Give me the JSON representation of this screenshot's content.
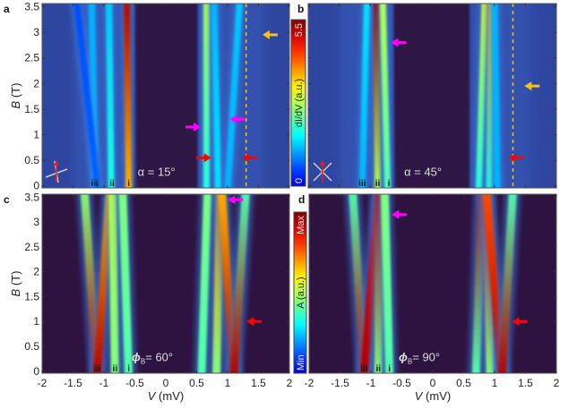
{
  "chart_data": [
    {
      "panel": "a",
      "type": "heatmap",
      "annotation": "α = 15°",
      "xlim": [
        -2,
        2
      ],
      "ylim": [
        0,
        3.5
      ],
      "ylabel": "B (T)",
      "background": "measured",
      "gap": [
        -0.5,
        0.52
      ],
      "dashed_line_V": 1.3,
      "branch_labels": [
        {
          "text": "iii",
          "V": -1.15
        },
        {
          "text": "ii",
          "V": -0.87
        },
        {
          "text": "i",
          "V": -0.6
        }
      ],
      "branches": [
        {
          "V0": -1.14,
          "V1": -1.2,
          "I0": 0.3,
          "I1": 0.3
        },
        {
          "V0": -1.1,
          "V1": -1.45,
          "I0": 0.22,
          "I1": 0.2
        },
        {
          "V0": -0.88,
          "V1": -0.92,
          "I0": 0.4,
          "I1": 0.32
        },
        {
          "V0": -0.6,
          "V1": -0.63,
          "I0": 0.7,
          "I1": 0.95
        },
        {
          "V0": 0.66,
          "V1": 0.66,
          "I0": 0.4,
          "I1": 0.55
        },
        {
          "V0": 0.85,
          "V1": 0.78,
          "I0": 0.35,
          "I1": 0.3
        },
        {
          "V0": 1.0,
          "V1": 1.2,
          "I0": 0.3,
          "I1": 0.32
        }
      ],
      "arrows": [
        {
          "color": "#f0c419",
          "dir": "left",
          "V": 1.68,
          "B": 2.95
        },
        {
          "color": "#ff00ff",
          "dir": "right",
          "V": 0.45,
          "B": 1.15
        },
        {
          "color": "#ff00ff",
          "dir": "left",
          "V": 1.15,
          "B": 1.3
        },
        {
          "color": "#ff0000",
          "dir": "right",
          "V": 0.62,
          "B": 0.55
        },
        {
          "color": "#ff0000",
          "dir": "left",
          "V": 1.35,
          "B": 0.55
        }
      ]
    },
    {
      "panel": "b",
      "type": "heatmap",
      "annotation": "α = 45°",
      "xlim": [
        -2,
        2
      ],
      "ylim": [
        0,
        3.5
      ],
      "background": "measured",
      "gap": [
        -0.62,
        0.6
      ],
      "dashed_line_V": 1.3,
      "branch_labels": [
        {
          "text": "iii",
          "V": -1.13
        },
        {
          "text": "ii",
          "V": -0.88
        },
        {
          "text": "i",
          "V": -0.7
        }
      ],
      "branches": [
        {
          "V0": -1.13,
          "V1": -1.05,
          "I0": 0.3,
          "I1": 0.35
        },
        {
          "V0": -0.88,
          "V1": -0.9,
          "I0": 0.55,
          "I1": 0.98
        },
        {
          "V0": -0.72,
          "V1": -0.8,
          "I0": 0.45,
          "I1": 0.55
        },
        {
          "V0": 0.75,
          "V1": 0.85,
          "I0": 0.4,
          "I1": 0.6
        },
        {
          "V0": 0.92,
          "V1": 0.95,
          "I0": 0.4,
          "I1": 0.7
        },
        {
          "V0": 1.05,
          "V1": 1.0,
          "I0": 0.3,
          "I1": 0.3
        }
      ],
      "arrows": [
        {
          "color": "#ff00ff",
          "dir": "left",
          "V": -0.55,
          "B": 2.8
        },
        {
          "color": "#f0c419",
          "dir": "left",
          "V": 1.6,
          "B": 1.95
        },
        {
          "color": "#ff0000",
          "dir": "left",
          "V": 1.35,
          "B": 0.55
        }
      ]
    },
    {
      "panel": "c",
      "type": "heatmap",
      "annotation_symbol": "ϕ",
      "annotation_sub": "B",
      "annotation_value": "= 60°",
      "xlim": [
        -2,
        2
      ],
      "ylim": [
        0,
        3.5
      ],
      "xlabel": "V (mV)",
      "ylabel": "B (T)",
      "background": "calculated",
      "branch_labels": [
        {
          "text": "iii",
          "V": -1.11
        },
        {
          "text": "ii",
          "V": -0.82
        },
        {
          "text": "i",
          "V": -0.6
        }
      ],
      "branches": [
        {
          "V0": -1.11,
          "V1": -1.32,
          "I0": 0.95,
          "I1": 0.5
        },
        {
          "V0": -1.11,
          "V1": -0.9,
          "I0": 0.95,
          "I1": 0.7
        },
        {
          "V0": -0.82,
          "V1": -0.86,
          "I0": 0.5,
          "I1": 0.55
        },
        {
          "V0": -0.6,
          "V1": -0.7,
          "I0": 0.45,
          "I1": 0.5
        },
        {
          "V0": 0.58,
          "V1": 0.68,
          "I0": 0.45,
          "I1": 0.5
        },
        {
          "V0": 0.82,
          "V1": 0.88,
          "I0": 0.5,
          "I1": 0.75
        },
        {
          "V0": 1.1,
          "V1": 0.9,
          "I0": 0.95,
          "I1": 0.7
        },
        {
          "V0": 1.1,
          "V1": 1.3,
          "I0": 0.95,
          "I1": 0.45
        }
      ],
      "arrows": [
        {
          "color": "#ff00ff",
          "dir": "left",
          "V": 1.12,
          "B": 3.45
        },
        {
          "color": "#ff0000",
          "dir": "left",
          "V": 1.42,
          "B": 1.0
        }
      ]
    },
    {
      "panel": "d",
      "type": "heatmap",
      "annotation_symbol": "ϕ",
      "annotation_sub": "B",
      "annotation_value": "= 90°",
      "xlim": [
        -2,
        2
      ],
      "ylim": [
        0,
        3.5
      ],
      "xlabel": "V (mV)",
      "background": "calculated",
      "branch_labels": [
        {
          "text": "iii",
          "V": -1.11
        },
        {
          "text": "ii",
          "V": -0.88
        },
        {
          "text": "i",
          "V": -0.7
        }
      ],
      "branches": [
        {
          "V0": -1.11,
          "V1": -1.3,
          "I0": 0.95,
          "I1": 0.45
        },
        {
          "V0": -1.11,
          "V1": -0.87,
          "I0": 0.95,
          "I1": 0.9
        },
        {
          "V0": -0.88,
          "V1": -0.86,
          "I0": 0.5,
          "I1": 0.95
        },
        {
          "V0": -0.7,
          "V1": -0.78,
          "I0": 0.45,
          "I1": 0.5
        },
        {
          "V0": 0.7,
          "V1": 0.8,
          "I0": 0.45,
          "I1": 0.95
        },
        {
          "V0": 0.93,
          "V1": 0.87,
          "I0": 0.5,
          "I1": 0.9
        },
        {
          "V0": 1.12,
          "V1": 0.86,
          "I0": 0.95,
          "I1": 0.8
        },
        {
          "V0": 1.12,
          "V1": 1.3,
          "I0": 0.95,
          "I1": 0.45
        }
      ],
      "arrows": [
        {
          "color": "#ff00ff",
          "dir": "left",
          "V": -0.55,
          "B": 3.15
        },
        {
          "color": "#ff0000",
          "dir": "left",
          "V": 1.4,
          "B": 1.0
        }
      ]
    }
  ],
  "axes": {
    "x_ticks": [
      "-2",
      "-1.5",
      "-1",
      "-0.5",
      "0",
      "0.5",
      "1",
      "1.5",
      "2"
    ],
    "y_ticks": [
      "0",
      "0.5",
      "1",
      "1.5",
      "2",
      "2.5",
      "3",
      "3.5"
    ],
    "xlabel_italic": "V",
    "xlabel_unit": " (mV)",
    "ylabel_italic": "B",
    "ylabel_unit": " (T)"
  },
  "colorbar_top": {
    "max": "5.5",
    "min": "0",
    "label": "dI/dV (a.u.)",
    "colormap": "jet"
  },
  "colorbar_bottom": {
    "max": "Max",
    "min": "Min",
    "label": "A (a.u.)",
    "colormap": "jet"
  },
  "colors": {
    "measured_bg": "#2f46a0",
    "gap_bg": "#2e1245",
    "calc_bg": "#2e1240",
    "dashed_line": "#e8c020"
  }
}
